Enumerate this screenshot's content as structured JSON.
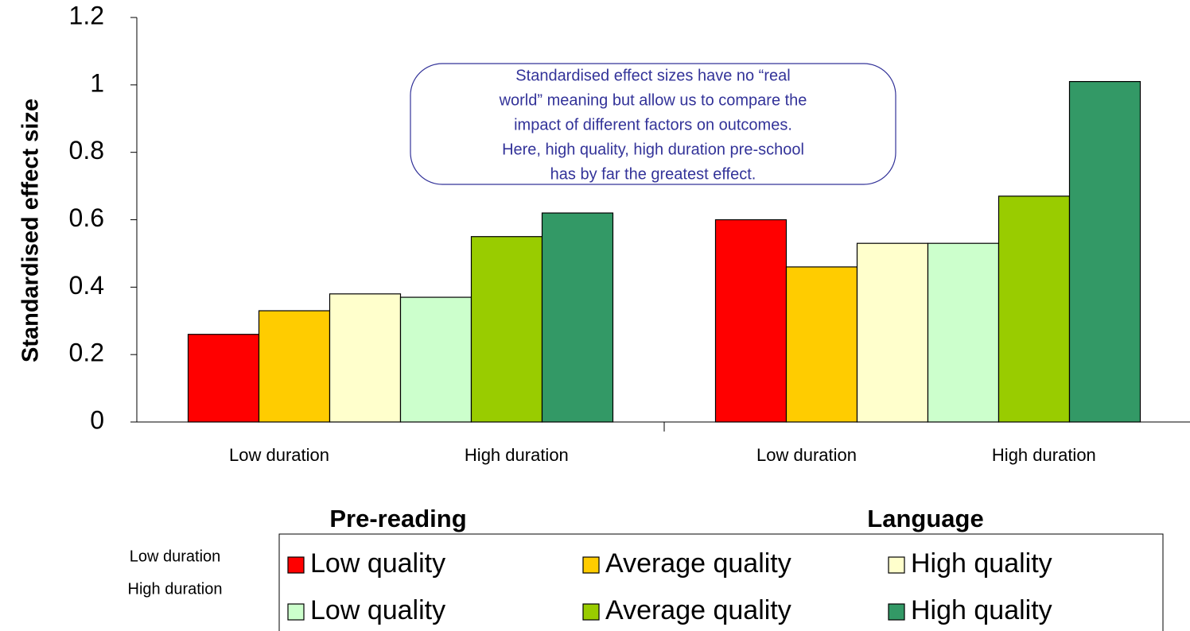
{
  "chart_data": {
    "type": "bar",
    "y_label": "Standardised effect size",
    "categories": [
      "Pre-reading",
      "Language"
    ],
    "subcategories": [
      "Low duration",
      "High duration"
    ],
    "annotation": [
      "Standardised effect sizes have no “real",
      "world” meaning but allow us to compare the",
      "impact of different factors on outcomes.",
      "Here, high quality, high duration pre-school",
      "has by far the greatest effect."
    ],
    "series": [
      {
        "name": "Low quality",
        "color": "#ff0000",
        "values": [
          0.26,
          0.6
        ]
      },
      {
        "name": "Average quality",
        "color": "#ffcc00",
        "values": [
          0.33,
          0.46
        ]
      },
      {
        "name": "High quality",
        "color": "#ffffcc",
        "values": [
          0.38,
          0.53
        ]
      },
      {
        "name": "Low quality",
        "color": "#ccffcc",
        "values": [
          0.37,
          0.53
        ]
      },
      {
        "name": "Average quality",
        "color": "#99cc00",
        "values": [
          0.55,
          0.67
        ]
      },
      {
        "name": "High quality",
        "color": "#339966",
        "values": [
          0.62,
          1.01
        ]
      }
    ],
    "ylim": [
      0,
      1.2
    ],
    "yticks": [
      0,
      0.2,
      0.4,
      0.6,
      0.8,
      1,
      1.2
    ],
    "grid": false
  }
}
